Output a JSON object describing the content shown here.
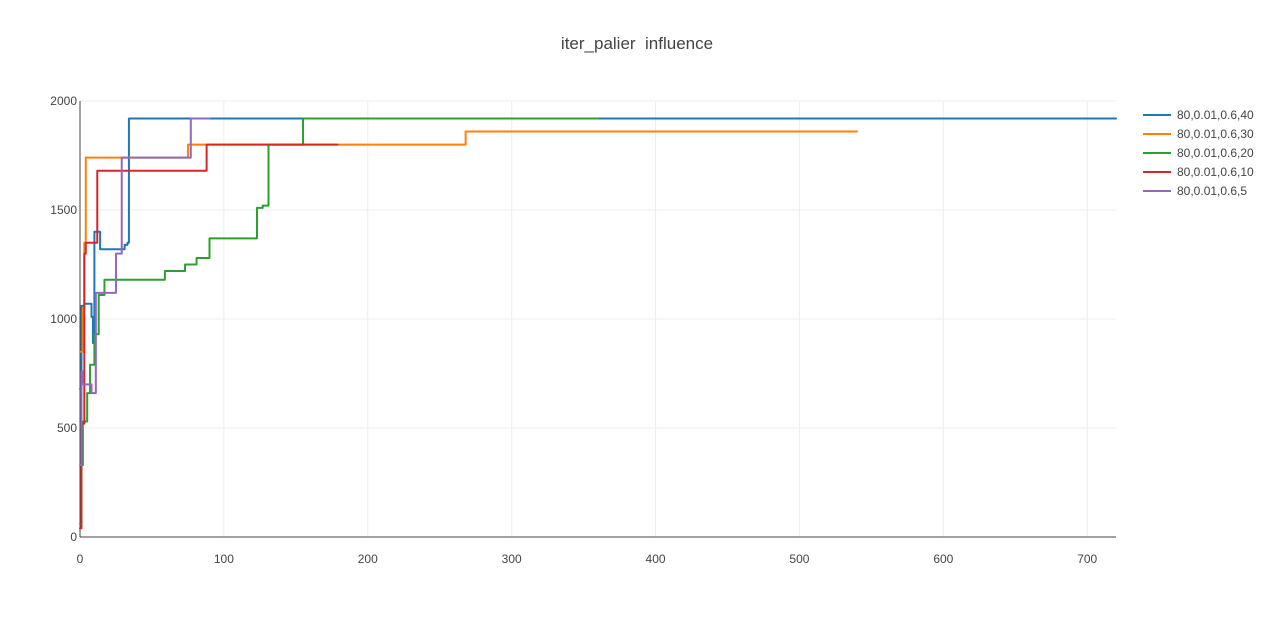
{
  "chart_data": {
    "type": "line",
    "title": "iter_palier  influence",
    "xlabel": "",
    "ylabel": "",
    "xlim": [
      0,
      720
    ],
    "ylim": [
      0,
      2000
    ],
    "xticks": [
      0,
      100,
      200,
      300,
      400,
      500,
      600,
      700
    ],
    "yticks": [
      0,
      500,
      1000,
      1500,
      2000
    ],
    "grid": true,
    "legend_position": "right",
    "series": [
      {
        "name": "80,0.01,0.6,40",
        "color": "#1f77b4",
        "x": [
          0,
          1,
          1,
          3,
          3,
          8,
          8,
          9,
          9,
          10,
          10,
          14,
          14,
          28,
          28,
          31,
          31,
          33,
          33,
          34,
          34,
          720
        ],
        "y": [
          680,
          680,
          1060,
          1060,
          1070,
          1070,
          1010,
          1010,
          890,
          890,
          1400,
          1400,
          1320,
          1320,
          1320,
          1320,
          1340,
          1340,
          1350,
          1350,
          1920,
          1920
        ]
      },
      {
        "name": "80,0.01,0.6,30",
        "color": "#ff7f0e",
        "x": [
          0,
          2,
          2,
          3,
          3,
          4,
          4,
          75,
          75,
          268,
          268,
          540
        ],
        "y": [
          850,
          850,
          1050,
          1050,
          1350,
          1350,
          1740,
          1740,
          1800,
          1800,
          1860,
          1860
        ]
      },
      {
        "name": "80,0.01,0.6,20",
        "color": "#2ca02c",
        "x": [
          0,
          1,
          1,
          2,
          2,
          5,
          5,
          7,
          7,
          10,
          10,
          13,
          13,
          17,
          17,
          59,
          59,
          73,
          73,
          81,
          81,
          90,
          90,
          123,
          123,
          127,
          127,
          131,
          131,
          152,
          152,
          155,
          155,
          360
        ],
        "y": [
          60,
          60,
          330,
          330,
          530,
          530,
          660,
          660,
          790,
          790,
          930,
          930,
          1110,
          1110,
          1180,
          1180,
          1220,
          1220,
          1250,
          1250,
          1280,
          1280,
          1370,
          1370,
          1510,
          1510,
          1520,
          1520,
          1800,
          1800,
          1800,
          1800,
          1920,
          1920
        ]
      },
      {
        "name": "80,0.01,0.6,10",
        "color": "#d62728",
        "x": [
          0,
          1,
          1,
          3,
          3,
          4,
          4,
          10,
          10,
          12,
          12,
          85,
          85,
          88,
          88,
          179
        ],
        "y": [
          40,
          40,
          520,
          520,
          1300,
          1300,
          1350,
          1350,
          1350,
          1350,
          1680,
          1680,
          1680,
          1680,
          1800,
          1800
        ]
      },
      {
        "name": "80,0.01,0.6,5",
        "color": "#9467bd",
        "x": [
          0,
          1,
          1,
          2,
          2,
          5,
          5,
          8,
          8,
          11,
          11,
          22,
          22,
          25,
          25,
          29,
          29,
          36,
          36,
          75,
          75,
          77,
          77,
          90
        ],
        "y": [
          330,
          330,
          760,
          760,
          700,
          700,
          700,
          700,
          660,
          660,
          1120,
          1120,
          1120,
          1120,
          1300,
          1300,
          1740,
          1740,
          1740,
          1740,
          1740,
          1740,
          1920,
          1920
        ]
      }
    ]
  }
}
